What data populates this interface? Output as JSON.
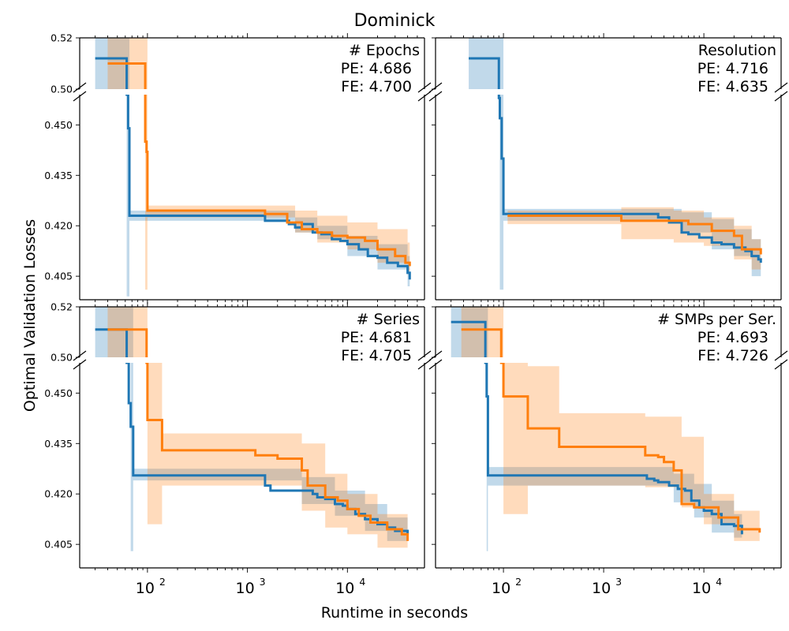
{
  "chart_data": {
    "type": "line",
    "title": "Dominick",
    "xlabel": "Runtime in seconds",
    "ylabel": "Optimal Validation Losses",
    "x_scale": "log",
    "xlim": [
      21,
      59000
    ],
    "x_ticks": [
      {
        "value": 100,
        "label": "10",
        "exp": "2"
      },
      {
        "value": 1000,
        "label": "10",
        "exp": "3"
      },
      {
        "value": 10000,
        "label": "10",
        "exp": "4"
      }
    ],
    "y_axis_broken": true,
    "ylim_upper": [
      0.5,
      0.52
    ],
    "ylim_lower": [
      0.398,
      0.459
    ],
    "y_ticks_upper": [
      "0.52",
      "0.50"
    ],
    "y_ticks_lower": [
      "0.450",
      "0.435",
      "0.420",
      "0.405"
    ],
    "series_colors": {
      "blue": "#1f77b4",
      "orange": "#ff7f0e"
    },
    "panels": [
      {
        "name": "# Epochs",
        "pe": "PE: 4.686",
        "fe": "FE: 4.700",
        "series": [
          {
            "name": "blue",
            "color": "#1f77b4",
            "x": [
              30,
              62,
              62,
              64,
              64,
              66,
              66,
              1500,
              1500,
              2000,
              2600,
              3000,
              3500,
              4500,
              5500,
              7000,
              8500,
              10000,
              13000,
              16000,
              20000,
              25000,
              32000,
              40000,
              42000
            ],
            "y": [
              0.512,
              0.512,
              0.47,
              0.47,
              0.449,
              0.449,
              0.423,
              0.423,
              0.4215,
              0.4215,
              0.4205,
              0.4195,
              0.4205,
              0.418,
              0.4175,
              0.416,
              0.4155,
              0.4145,
              0.413,
              0.411,
              0.4105,
              0.409,
              0.408,
              0.406,
              0.404
            ]
          },
          {
            "name": "orange",
            "color": "#ff7f0e",
            "x": [
              40,
              95,
              95,
              98,
              98,
              100,
              100,
              1500,
              1500,
              2500,
              2500,
              3500,
              5000,
              7000,
              10000,
              15000,
              20000,
              30000,
              38000,
              42000
            ],
            "y": [
              0.51,
              0.51,
              0.445,
              0.445,
              0.442,
              0.442,
              0.4245,
              0.4245,
              0.4235,
              0.4235,
              0.421,
              0.419,
              0.418,
              0.417,
              0.4165,
              0.4155,
              0.413,
              0.411,
              0.409,
              0.408
            ]
          }
        ],
        "bands": [
          {
            "color": "blue",
            "x": [
              30,
              62,
              62,
              66,
              66,
              1500,
              3000,
              5000,
              10000,
              20000,
              40000,
              42000
            ],
            "lower": [
              0.5,
              0.5,
              0.399,
              0.399,
              0.4215,
              0.4215,
              0.418,
              0.416,
              0.411,
              0.407,
              0.402,
              0.401
            ],
            "upper": [
              0.52,
              0.52,
              0.52,
              0.52,
              0.4245,
              0.4245,
              0.4225,
              0.42,
              0.417,
              0.4145,
              0.411,
              0.41
            ]
          },
          {
            "color": "orange",
            "x": [
              40,
              95,
              95,
              100,
              100,
              1500,
              3000,
              5000,
              10000,
              20000,
              40000,
              42000
            ],
            "lower": [
              0.5,
              0.5,
              0.401,
              0.401,
              0.4225,
              0.4225,
              0.418,
              0.415,
              0.413,
              0.409,
              0.406,
              0.405
            ],
            "upper": [
              0.52,
              0.52,
              0.52,
              0.52,
              0.426,
              0.426,
              0.4245,
              0.423,
              0.421,
              0.419,
              0.415,
              0.414
            ]
          }
        ]
      },
      {
        "name": "Resolution",
        "pe": "PE: 4.716",
        "fe": "FE: 4.635",
        "series": [
          {
            "name": "blue",
            "color": "#1f77b4",
            "x": [
              45,
              90,
              90,
              92,
              92,
              96,
              96,
              100,
              100,
              3500,
              3500,
              4500,
              4500,
              6000,
              6000,
              7000,
              9000,
              12000,
              15000,
              20000,
              26000,
              30000,
              35000,
              37000
            ],
            "y": [
              0.512,
              0.512,
              0.458,
              0.458,
              0.452,
              0.452,
              0.44,
              0.44,
              0.4235,
              0.4235,
              0.4225,
              0.4225,
              0.421,
              0.421,
              0.418,
              0.4175,
              0.4165,
              0.415,
              0.4145,
              0.4135,
              0.4125,
              0.411,
              0.41,
              0.409
            ]
          },
          {
            "name": "orange",
            "color": "#ff7f0e",
            "x": [
              110,
              1500,
              1500,
              7000,
              12000,
              12000,
              20000,
              24000,
              24000,
              37000
            ],
            "y": [
              0.423,
              0.423,
              0.4215,
              0.4205,
              0.4205,
              0.4185,
              0.417,
              0.417,
              0.413,
              0.4115
            ]
          }
        ],
        "bands": [
          {
            "color": "blue",
            "x": [
              45,
              92,
              92,
              100,
              100,
              3500,
              6000,
              12000,
              20000,
              30000,
              37000
            ],
            "lower": [
              0.5,
              0.5,
              0.401,
              0.401,
              0.4215,
              0.4215,
              0.418,
              0.413,
              0.411,
              0.405,
              0.404
            ],
            "upper": [
              0.52,
              0.52,
              0.52,
              0.52,
              0.425,
              0.425,
              0.424,
              0.422,
              0.419,
              0.416,
              0.415
            ]
          },
          {
            "color": "orange",
            "x": [
              110,
              1500,
              1500,
              5000,
              10000,
              20000,
              30000,
              37000
            ],
            "lower": [
              0.4205,
              0.4205,
              0.416,
              0.415,
              0.414,
              0.41,
              0.407,
              0.406
            ],
            "upper": [
              0.4245,
              0.4245,
              0.4255,
              0.4245,
              0.4225,
              0.42,
              0.416,
              0.414
            ]
          }
        ]
      },
      {
        "name": "# Series",
        "pe": "PE: 4.681",
        "fe": "FE: 4.705",
        "series": [
          {
            "name": "blue",
            "color": "#1f77b4",
            "x": [
              30,
              62,
              62,
              65,
              65,
              68,
              68,
              72,
              72,
              1500,
              1500,
              1700,
              1700,
              3500,
              4500,
              5000,
              6000,
              7500,
              9000,
              10000,
              12000,
              15000,
              20000,
              25000,
              30000,
              40000
            ],
            "y": [
              0.511,
              0.511,
              0.46,
              0.46,
              0.447,
              0.447,
              0.44,
              0.44,
              0.4255,
              0.4255,
              0.4225,
              0.4225,
              0.421,
              0.421,
              0.42,
              0.419,
              0.4185,
              0.417,
              0.4165,
              0.4155,
              0.414,
              0.4125,
              0.411,
              0.41,
              0.409,
              0.408
            ]
          },
          {
            "name": "orange",
            "color": "#ff7f0e",
            "x": [
              40,
              98,
              98,
              100,
              100,
              140,
              140,
              1200,
              1200,
              2000,
              2000,
              3500,
              3500,
              4000,
              4000,
              6000,
              6000,
              8000,
              10000,
              13000,
              17000,
              25000,
              35000,
              40000
            ],
            "y": [
              0.511,
              0.511,
              0.459,
              0.459,
              0.442,
              0.442,
              0.433,
              0.433,
              0.4315,
              0.4315,
              0.4305,
              0.4305,
              0.427,
              0.427,
              0.4225,
              0.4225,
              0.419,
              0.418,
              0.4155,
              0.4135,
              0.4115,
              0.4095,
              0.408,
              0.406
            ]
          }
        ],
        "bands": [
          {
            "color": "blue",
            "x": [
              30,
              68,
              68,
              72,
              72,
              1500,
              3500,
              7500,
              15000,
              25000,
              40000
            ],
            "lower": [
              0.5,
              0.5,
              0.403,
              0.403,
              0.424,
              0.424,
              0.417,
              0.4135,
              0.409,
              0.406,
              0.405
            ],
            "upper": [
              0.52,
              0.52,
              0.52,
              0.52,
              0.4275,
              0.4275,
              0.425,
              0.421,
              0.417,
              0.413,
              0.411
            ]
          },
          {
            "color": "orange",
            "x": [
              40,
              100,
              100,
              140,
              140,
              1200,
              3500,
              6000,
              10000,
              20000,
              40000
            ],
            "lower": [
              0.5,
              0.5,
              0.411,
              0.411,
              0.4225,
              0.4225,
              0.415,
              0.41,
              0.408,
              0.404,
              0.403
            ],
            "upper": [
              0.52,
              0.52,
              0.459,
              0.459,
              0.438,
              0.438,
              0.435,
              0.426,
              0.42,
              0.414,
              0.411
            ]
          }
        ]
      },
      {
        "name": "# SMPs per Ser.",
        "pe": "PE: 4.693",
        "fe": "FE: 4.726",
        "series": [
          {
            "name": "blue",
            "color": "#1f77b4",
            "x": [
              30,
              66,
              66,
              68,
              68,
              70,
              70,
              2700,
              2700,
              3200,
              3500,
              4500,
              5500,
              6500,
              7500,
              9000,
              9000,
              10000,
              12000,
              15000,
              15000,
              20000,
              24000,
              24000
            ],
            "y": [
              0.514,
              0.514,
              0.46,
              0.46,
              0.449,
              0.449,
              0.4255,
              0.4255,
              0.4245,
              0.424,
              0.4235,
              0.4225,
              0.4215,
              0.421,
              0.418,
              0.418,
              0.416,
              0.415,
              0.414,
              0.4115,
              0.411,
              0.4105,
              0.4095,
              0.408
            ]
          },
          {
            "name": "orange",
            "color": "#ff7f0e",
            "x": [
              38,
              95,
              95,
              100,
              100,
              175,
              175,
              360,
              360,
              2600,
              2600,
              3500,
              4000,
              5000,
              6000,
              6000,
              8000,
              14000,
              14000,
              22000,
              22000,
              36000
            ],
            "y": [
              0.511,
              0.511,
              0.46,
              0.46,
              0.449,
              0.449,
              0.4395,
              0.4395,
              0.434,
              0.434,
              0.4315,
              0.431,
              0.4295,
              0.427,
              0.419,
              0.417,
              0.416,
              0.4155,
              0.413,
              0.413,
              0.4095,
              0.4085
            ]
          }
        ],
        "bands": [
          {
            "color": "blue",
            "x": [
              30,
              68,
              68,
              70,
              70,
              2700,
              5000,
              8000,
              12000,
              20000,
              24000
            ],
            "lower": [
              0.5,
              0.5,
              0.403,
              0.403,
              0.4225,
              0.4225,
              0.4175,
              0.413,
              0.4085,
              0.407,
              0.406
            ],
            "upper": [
              0.52,
              0.52,
              0.52,
              0.52,
              0.428,
              0.428,
              0.426,
              0.423,
              0.418,
              0.414,
              0.413
            ]
          },
          {
            "color": "orange",
            "x": [
              38,
              100,
              100,
              175,
              175,
              360,
              360,
              2600,
              6000,
              10000,
              20000,
              36000
            ],
            "lower": [
              0.5,
              0.5,
              0.414,
              0.414,
              0.4225,
              0.4225,
              0.4225,
              0.422,
              0.416,
              0.411,
              0.406,
              0.405
            ],
            "upper": [
              0.52,
              0.52,
              0.459,
              0.459,
              0.458,
              0.458,
              0.444,
              0.443,
              0.437,
              0.42,
              0.415,
              0.412
            ]
          }
        ]
      }
    ]
  }
}
